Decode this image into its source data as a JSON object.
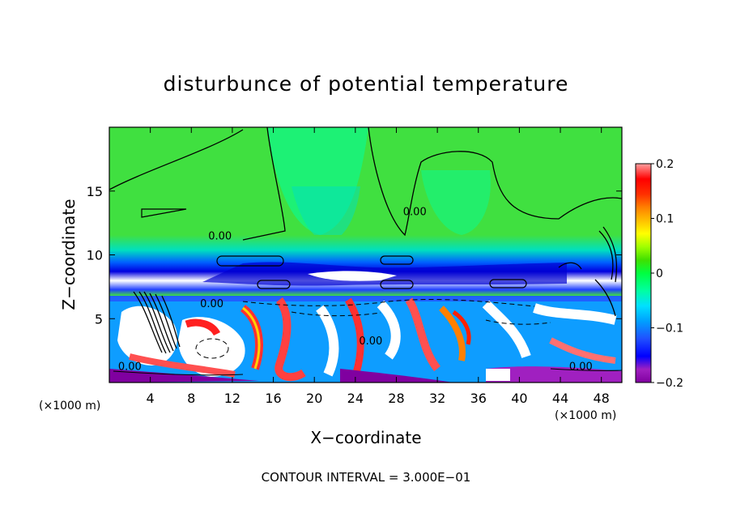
{
  "chart_data": {
    "type": "heatmap",
    "title": "disturbunce of potential temperature",
    "xlabel": "X−coordinate",
    "ylabel": "Z−coordinate",
    "x_unit_left": "(×1000 m)",
    "x_unit_right": "(×1000 m)",
    "footer": "CONTOUR INTERVAL = 3.000E−01",
    "xlim": [
      0,
      50
    ],
    "ylim": [
      0,
      20
    ],
    "x_ticks": [
      4,
      8,
      12,
      16,
      20,
      24,
      28,
      32,
      36,
      40,
      44,
      48
    ],
    "x_tick_labels": [
      "4",
      "8",
      "12",
      "16",
      "20",
      "24",
      "28",
      "32",
      "36",
      "40",
      "44",
      "48"
    ],
    "y_ticks": [
      5,
      10,
      15
    ],
    "y_tick_labels": [
      "5",
      "10",
      "15"
    ],
    "colorbar": {
      "range": [
        -0.2,
        0.2
      ],
      "ticks": [
        0.2,
        0.1,
        0,
        -0.1,
        -0.2
      ],
      "tick_labels": [
        "0.2",
        "0.1",
        "0",
        "−0.1",
        "−0.2"
      ],
      "colors": [
        "#8000a0",
        "#a020c0",
        "#0000ff",
        "#2050ff",
        "#00a0ff",
        "#00e0ff",
        "#00ffa0",
        "#00ff40",
        "#40e000",
        "#a0ff00",
        "#ffff00",
        "#ffc000",
        "#ff8000",
        "#ff3000",
        "#ff0000",
        "#ffa0a0"
      ]
    },
    "contour_labels": [
      {
        "text": "0.00",
        "x": 10.8,
        "z": 11.2
      },
      {
        "text": "0.00",
        "x": 29.8,
        "z": 13.1
      },
      {
        "text": "0.00",
        "x": 10.0,
        "z": 5.9
      },
      {
        "text": "0.00",
        "x": 25.5,
        "z": 3.0
      },
      {
        "text": "0.00",
        "x": 2.0,
        "z": 1.0
      },
      {
        "text": "0.00",
        "x": 46.0,
        "z": 1.0
      }
    ],
    "fields": {
      "upper_layer": {
        "z_range": [
          11,
          20
        ],
        "value": 0.0,
        "color": "#40e040"
      },
      "cold_band": {
        "z_range": [
          7.5,
          9.2
        ],
        "value": -0.15,
        "color": "#1840ff"
      },
      "lower_turbulent_layer": {
        "z_range": [
          0,
          7
        ],
        "value_range": [
          -0.2,
          0.2
        ]
      }
    }
  }
}
